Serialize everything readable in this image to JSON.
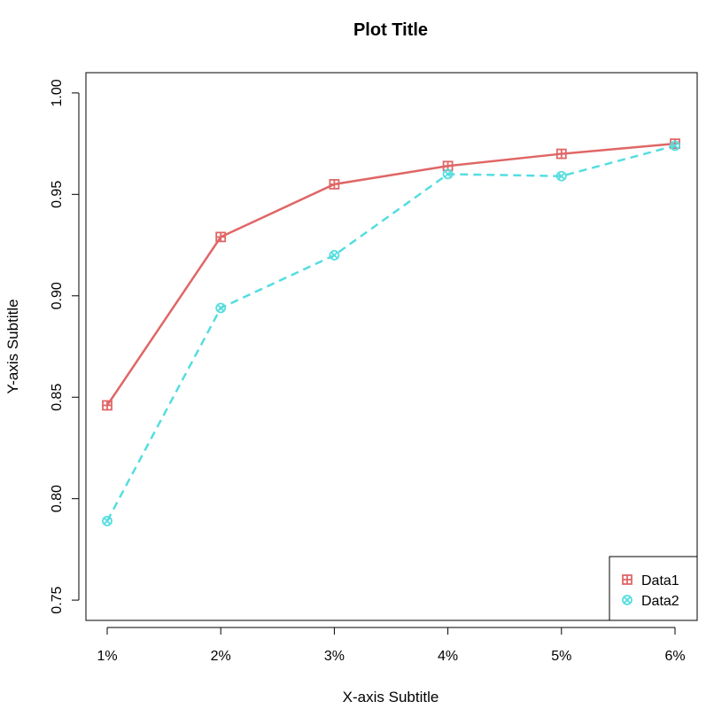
{
  "chart_data": {
    "type": "line",
    "title": "Plot Title",
    "xlabel": "X-axis Subtitle",
    "ylabel": "Y-axis Subtitle",
    "categories": [
      "1%",
      "2%",
      "3%",
      "4%",
      "5%",
      "6%"
    ],
    "ylim": [
      0.74,
      1.01
    ],
    "yticks": [
      0.75,
      0.8,
      0.85,
      0.9,
      0.95,
      1.0
    ],
    "ytick_labels": [
      "0.75",
      "0.80",
      "0.85",
      "0.90",
      "0.95",
      "1.00"
    ],
    "grid": false,
    "legend_position": "bottom-right",
    "series": [
      {
        "name": "Data1",
        "values": [
          0.846,
          0.929,
          0.955,
          0.964,
          0.97,
          0.975
        ],
        "color": "#E06666",
        "line_style": "solid",
        "marker": "squared-plus"
      },
      {
        "name": "Data2",
        "values": [
          0.789,
          0.894,
          0.92,
          0.96,
          0.959,
          0.974
        ],
        "color": "#55DDE0",
        "line_style": "dashed",
        "marker": "circled-x"
      }
    ]
  }
}
